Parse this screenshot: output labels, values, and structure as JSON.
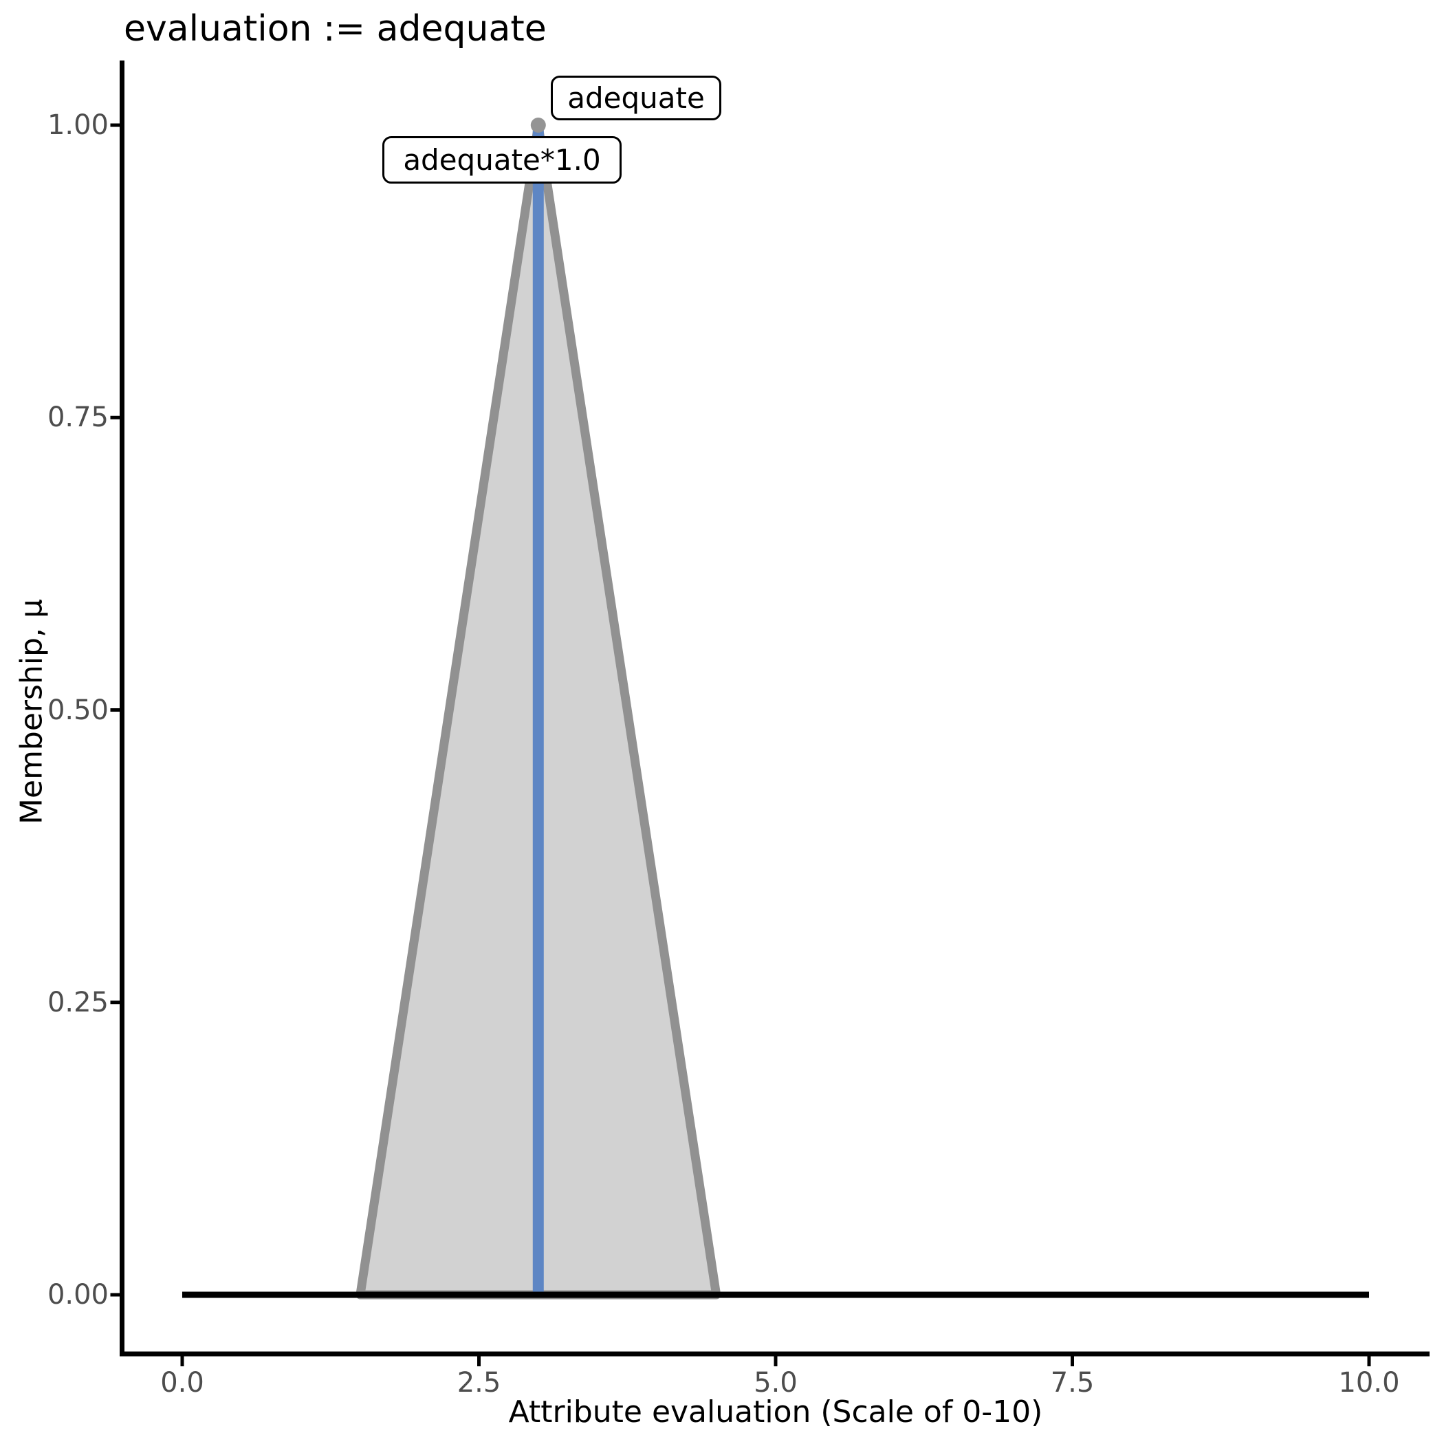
{
  "chart_data": {
    "type": "area",
    "title": "evaluation := adequate",
    "xlabel": "Attribute evaluation (Scale of 0-10)",
    "ylabel": "Membership, μ",
    "xlim": [
      0,
      10
    ],
    "ylim": [
      0,
      1
    ],
    "grid": false,
    "legend": false,
    "x_ticks": [
      {
        "value": 0,
        "label": "0.0"
      },
      {
        "value": 2.5,
        "label": "2.5"
      },
      {
        "value": 5,
        "label": "5.0"
      },
      {
        "value": 7.5,
        "label": "7.5"
      },
      {
        "value": 10,
        "label": "10.0"
      }
    ],
    "y_ticks": [
      {
        "value": 0,
        "label": "0.00"
      },
      {
        "value": 0.25,
        "label": "0.25"
      },
      {
        "value": 0.5,
        "label": "0.50"
      },
      {
        "value": 0.75,
        "label": "0.75"
      },
      {
        "value": 1,
        "label": "1.00"
      }
    ],
    "series": [
      {
        "name": "adequate-membership-triangle",
        "kind": "area",
        "points": [
          [
            1.5,
            0
          ],
          [
            3,
            1
          ],
          [
            4.5,
            0
          ]
        ],
        "fill": "#d2d2d2",
        "stroke": "#919191",
        "stroke_width": 13
      },
      {
        "name": "crisp-value-line",
        "kind": "vline",
        "x": 3,
        "y0": 0,
        "y1": 1,
        "stroke": "#5e86c4",
        "stroke_width": 16
      },
      {
        "name": "universe-baseline",
        "kind": "line",
        "points": [
          [
            0,
            0
          ],
          [
            10,
            0
          ]
        ],
        "stroke": "#000000",
        "stroke_width": 9
      },
      {
        "name": "peak-marker",
        "kind": "point",
        "x": 3,
        "y": 1,
        "r": 11,
        "fill": "#949494"
      }
    ],
    "annotations": [
      {
        "text": "adequate",
        "x": 3,
        "y": 1,
        "position": "upper-right"
      },
      {
        "text": "adequate*1.0",
        "x": 3,
        "y": 1,
        "position": "upper-left"
      }
    ]
  },
  "colors": {
    "background": "#ffffff",
    "axis": "#000000",
    "tick_label": "#4d4d4d",
    "fill_gray": "#d2d2d2",
    "outline_gray": "#919191",
    "crisp_blue": "#5e86c4"
  }
}
